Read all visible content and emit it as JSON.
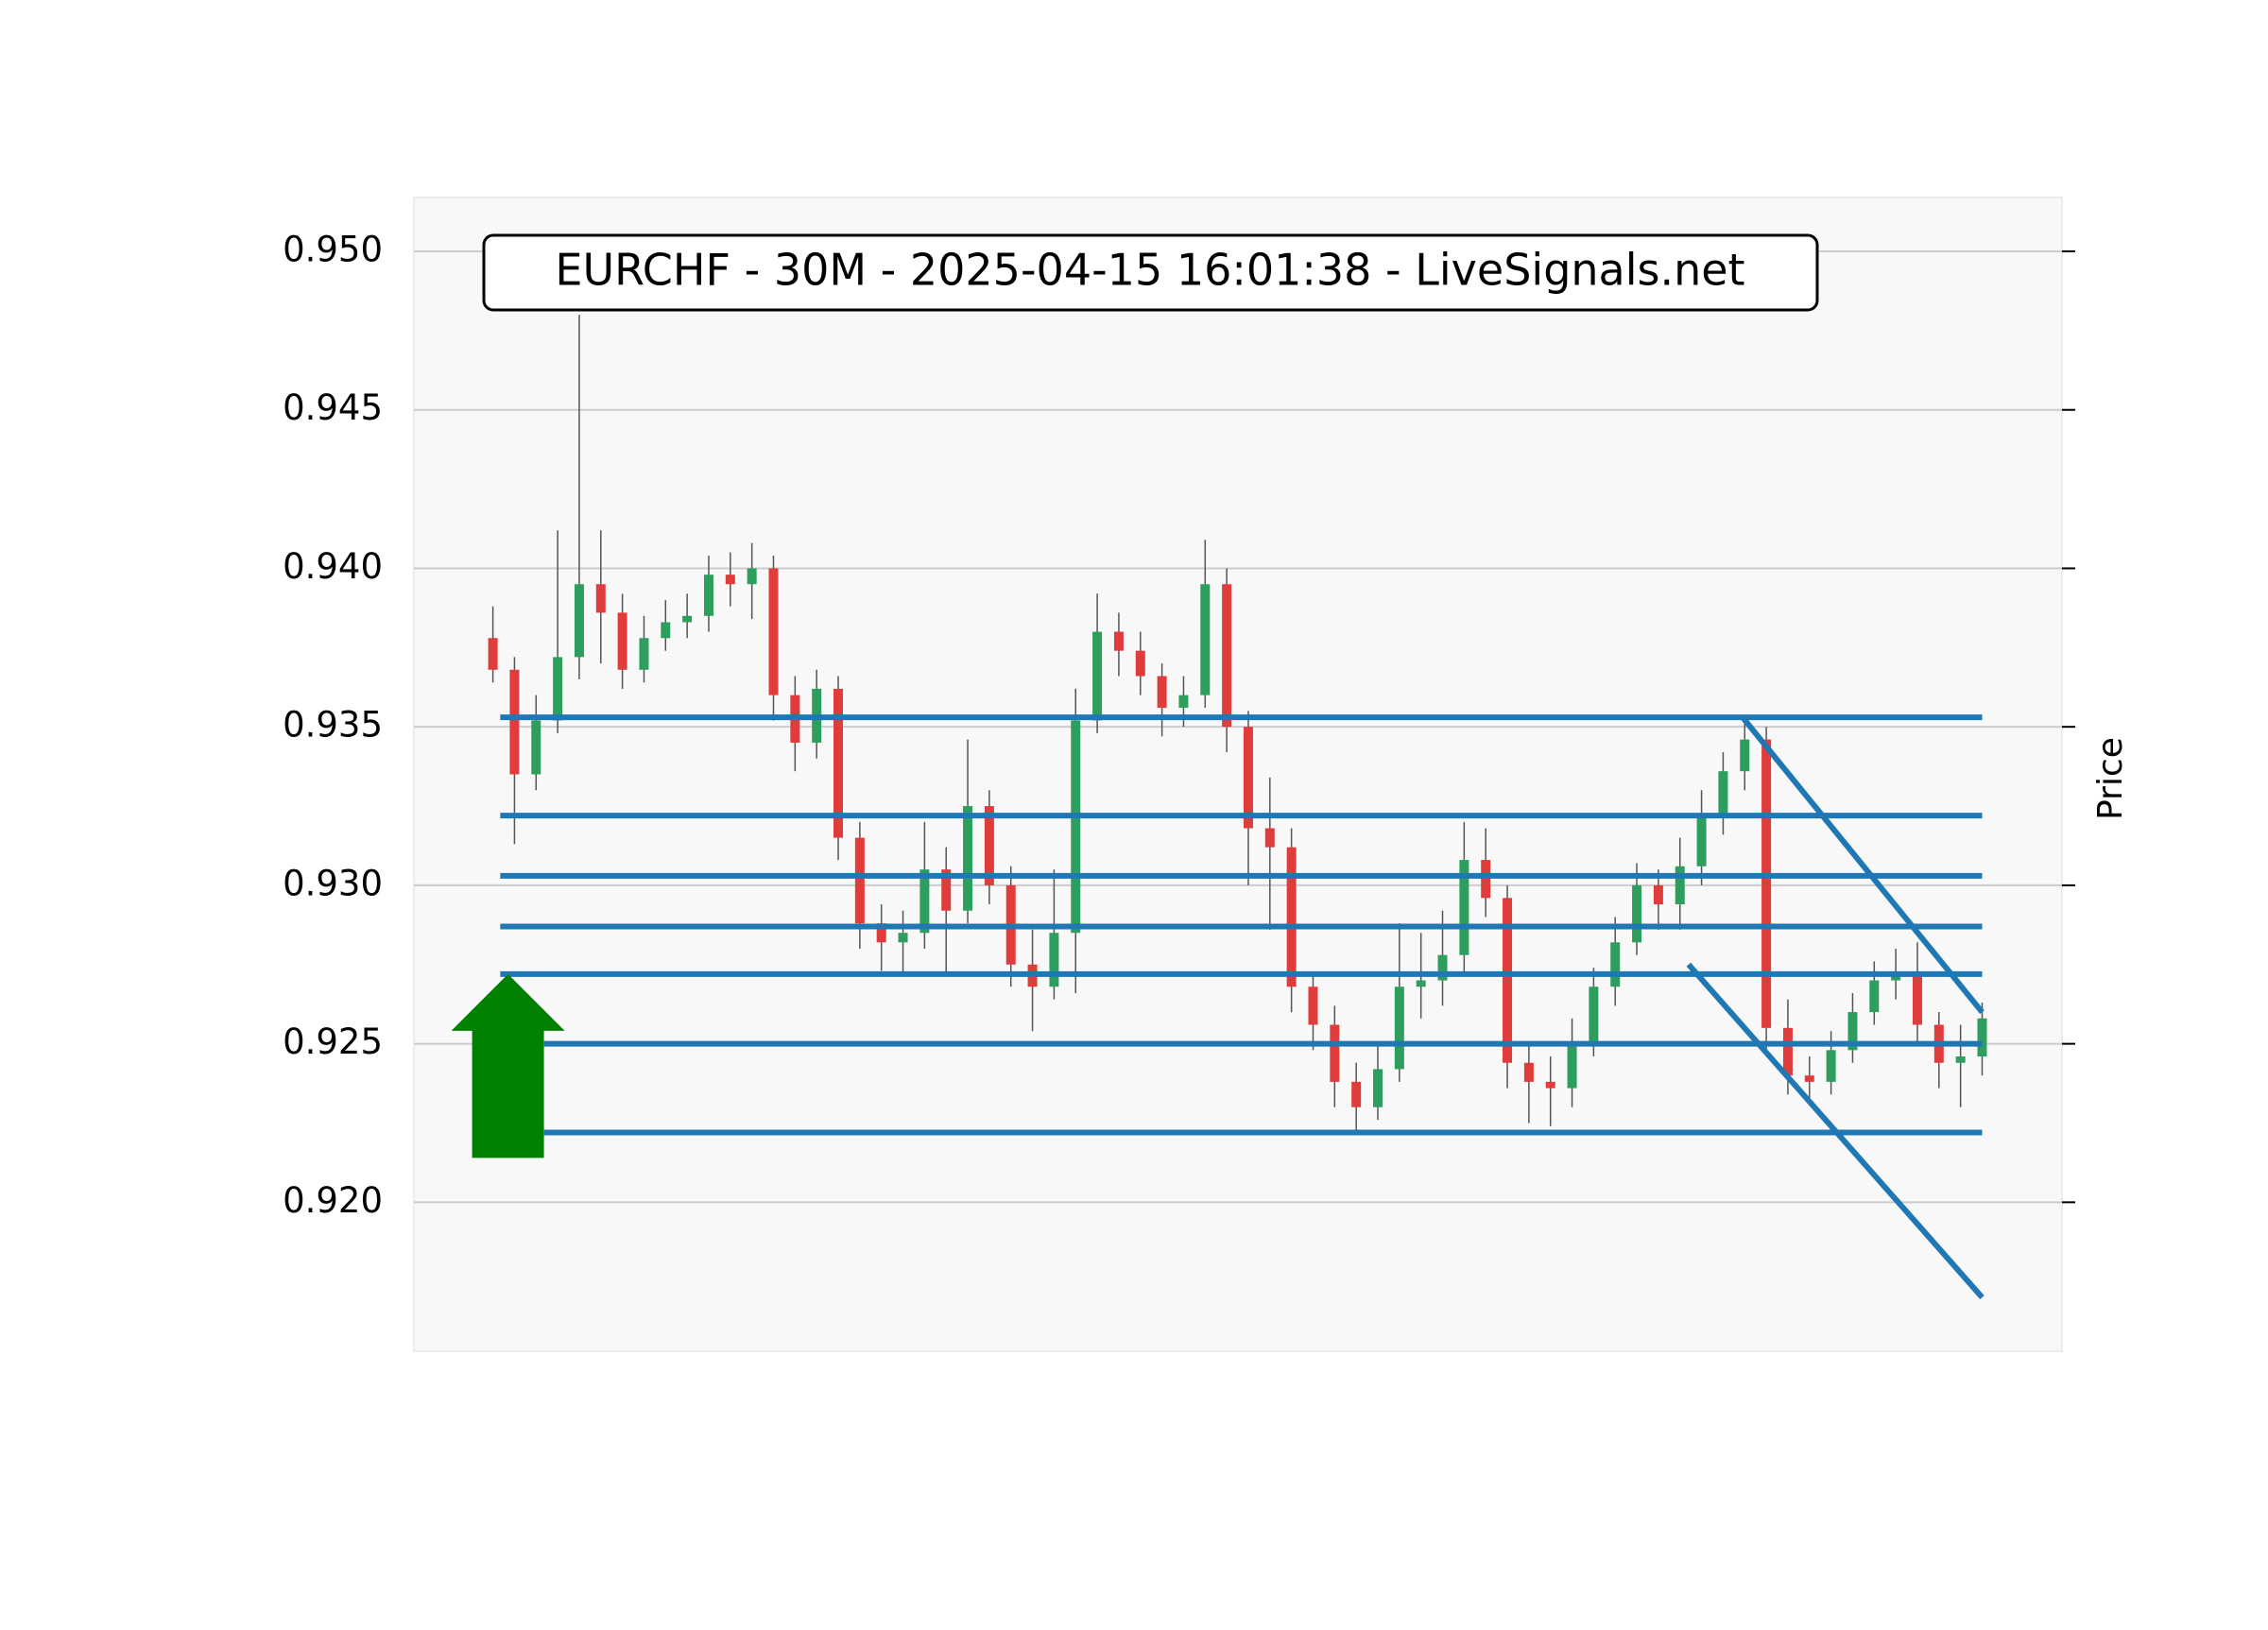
{
  "chart_data": {
    "type": "candlestick",
    "title": "EURCHF - 30M - 2025-04-15 16:01:38 - LiveSignals.net",
    "y_label": "Price",
    "xlim": [
      -3.66,
      72.7
    ],
    "ylim": [
      0.9153,
      0.9517
    ],
    "yticks": [
      {
        "value": 0.92,
        "label": "0.920"
      },
      {
        "value": 0.925,
        "label": "0.925"
      },
      {
        "value": 0.93,
        "label": "0.930"
      },
      {
        "value": 0.935,
        "label": "0.935"
      },
      {
        "value": 0.94,
        "label": "0.940"
      },
      {
        "value": 0.945,
        "label": "0.945"
      },
      {
        "value": 0.95,
        "label": "0.950"
      }
    ],
    "grid": true,
    "up_color": "#2e9e5e",
    "down_color": "#e03c3c",
    "open": [
      0.9378,
      0.9368,
      0.9335,
      0.9352,
      0.9372,
      0.9395,
      0.9386,
      0.9368,
      0.9378,
      0.9383,
      0.9385,
      0.9398,
      0.9395,
      0.94,
      0.936,
      0.9345,
      0.9362,
      0.9315,
      0.9288,
      0.9282,
      0.9285,
      0.9305,
      0.9292,
      0.9325,
      0.93,
      0.9275,
      0.9268,
      0.9285,
      0.9352,
      0.938,
      0.9374,
      0.9366,
      0.9356,
      0.936,
      0.9395,
      0.935,
      0.9318,
      0.9312,
      0.9268,
      0.9256,
      0.9238,
      0.923,
      0.9242,
      0.9268,
      0.927,
      0.9278,
      0.9308,
      0.9296,
      0.9244,
      0.9238,
      0.9236,
      0.925,
      0.9268,
      0.9282,
      0.93,
      0.9294,
      0.9306,
      0.9322,
      0.9336,
      0.9346,
      0.9255,
      0.924,
      0.9238,
      0.9248,
      0.926,
      0.927,
      0.9272,
      0.9256,
      0.9244,
      0.9246
    ],
    "high": [
      0.9388,
      0.9372,
      0.936,
      0.9412,
      0.948,
      0.9412,
      0.9392,
      0.9385,
      0.939,
      0.9392,
      0.9404,
      0.9405,
      0.9408,
      0.9404,
      0.9366,
      0.9368,
      0.9366,
      0.932,
      0.9294,
      0.9292,
      0.932,
      0.9312,
      0.9346,
      0.933,
      0.9306,
      0.9286,
      0.9305,
      0.9362,
      0.9392,
      0.9386,
      0.938,
      0.937,
      0.9366,
      0.9409,
      0.94,
      0.9355,
      0.9334,
      0.9318,
      0.9272,
      0.9262,
      0.9244,
      0.925,
      0.9288,
      0.9285,
      0.9292,
      0.932,
      0.9318,
      0.93,
      0.925,
      0.9246,
      0.9258,
      0.9274,
      0.929,
      0.9307,
      0.9305,
      0.9315,
      0.933,
      0.9342,
      0.9353,
      0.935,
      0.9264,
      0.9246,
      0.9254,
      0.9266,
      0.9276,
      0.928,
      0.9282,
      0.926,
      0.9256,
      0.9263
    ],
    "low": [
      0.9364,
      0.9313,
      0.933,
      0.9348,
      0.9365,
      0.937,
      0.9362,
      0.9364,
      0.9374,
      0.9378,
      0.938,
      0.9388,
      0.9384,
      0.9352,
      0.9336,
      0.934,
      0.9308,
      0.928,
      0.9273,
      0.9272,
      0.928,
      0.9272,
      0.9288,
      0.9294,
      0.9268,
      0.9254,
      0.9264,
      0.9266,
      0.9348,
      0.9366,
      0.936,
      0.9347,
      0.935,
      0.9356,
      0.9342,
      0.93,
      0.9286,
      0.926,
      0.9248,
      0.923,
      0.9222,
      0.9226,
      0.9238,
      0.9258,
      0.9262,
      0.9272,
      0.929,
      0.9236,
      0.9225,
      0.9224,
      0.923,
      0.9246,
      0.9262,
      0.9278,
      0.9286,
      0.9286,
      0.93,
      0.9316,
      0.933,
      0.9246,
      0.9234,
      0.9232,
      0.9234,
      0.9244,
      0.9256,
      0.9264,
      0.925,
      0.9236,
      0.923,
      0.924
    ],
    "close": [
      0.9368,
      0.9335,
      0.9352,
      0.9372,
      0.9395,
      0.9386,
      0.9368,
      0.9378,
      0.9383,
      0.9385,
      0.9398,
      0.9395,
      0.94,
      0.936,
      0.9345,
      0.9362,
      0.9315,
      0.9288,
      0.9282,
      0.9285,
      0.9305,
      0.9292,
      0.9325,
      0.93,
      0.9275,
      0.9268,
      0.9285,
      0.9352,
      0.938,
      0.9374,
      0.9366,
      0.9356,
      0.936,
      0.9395,
      0.935,
      0.9318,
      0.9312,
      0.9268,
      0.9256,
      0.9238,
      0.923,
      0.9242,
      0.9268,
      0.927,
      0.9278,
      0.9308,
      0.9296,
      0.9244,
      0.9238,
      0.9236,
      0.925,
      0.9268,
      0.9282,
      0.93,
      0.9294,
      0.9306,
      0.9322,
      0.9336,
      0.9346,
      0.9255,
      0.924,
      0.9238,
      0.9248,
      0.926,
      0.927,
      0.9272,
      0.9256,
      0.9244,
      0.9246,
      0.9258
    ],
    "line_color": "#1f77b4",
    "levels": [
      {
        "y": 0.9353,
        "x": [
          0.34,
          69
        ]
      },
      {
        "y": 0.9322,
        "x": [
          0.34,
          69
        ]
      },
      {
        "y": 0.9303,
        "x": [
          0.34,
          69
        ]
      },
      {
        "y": 0.9287,
        "x": [
          0.34,
          69
        ]
      },
      {
        "y": 0.9272,
        "x": [
          0.34,
          69
        ]
      },
      {
        "y": 0.925,
        "x": [
          2.37,
          69
        ]
      },
      {
        "y": 0.9222,
        "x": [
          2.37,
          69
        ]
      }
    ],
    "trend_lines": [
      {
        "x": [
          57.9,
          69
        ],
        "y": [
          0.9353,
          0.926
        ]
      },
      {
        "x": [
          55.4,
          69
        ],
        "y": [
          0.9275,
          0.917
        ]
      }
    ],
    "arrow": {
      "direction": "up",
      "x": 0.7,
      "y": 0.9272,
      "y_end": 0.9214,
      "color": "green"
    }
  }
}
